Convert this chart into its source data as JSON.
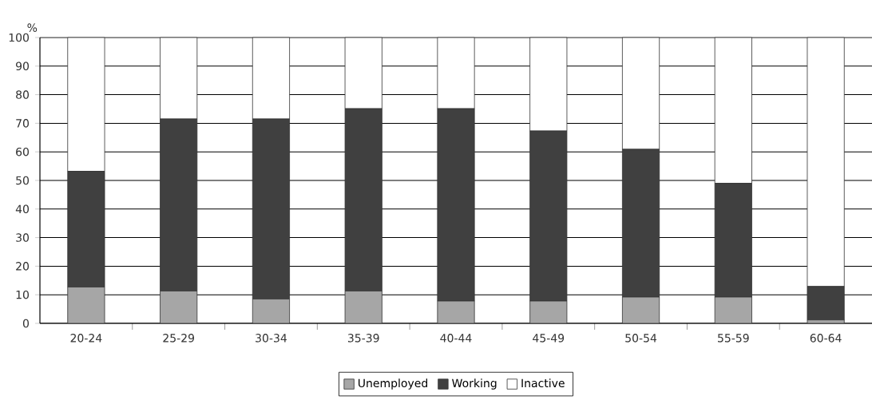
{
  "chart_data": {
    "type": "bar",
    "stacked": true,
    "ylabel": "%",
    "categories": [
      "20-24",
      "25-29",
      "30-34",
      "35-39",
      "40-44",
      "45-49",
      "50-54",
      "55-59",
      "60-64"
    ],
    "series": [
      {
        "name": "Unemployed",
        "color": "#a6a6a6",
        "values": [
          12.7,
          11.3,
          8.5,
          11.3,
          7.8,
          7.8,
          9.2,
          9.2,
          1.2
        ]
      },
      {
        "name": "Working",
        "color": "#404040",
        "values": [
          40.5,
          60.2,
          63.0,
          63.8,
          67.3,
          59.5,
          51.7,
          39.8,
          11.7
        ]
      },
      {
        "name": "Inactive",
        "color": "#ffffff",
        "values": [
          46.8,
          28.5,
          28.5,
          24.9,
          24.9,
          32.7,
          39.1,
          51.0,
          87.1
        ]
      }
    ],
    "ylim": [
      0,
      100
    ],
    "yticks": [
      0,
      10,
      20,
      30,
      40,
      50,
      60,
      70,
      80,
      90,
      100
    ],
    "grid": "y",
    "legend": "bottom"
  }
}
